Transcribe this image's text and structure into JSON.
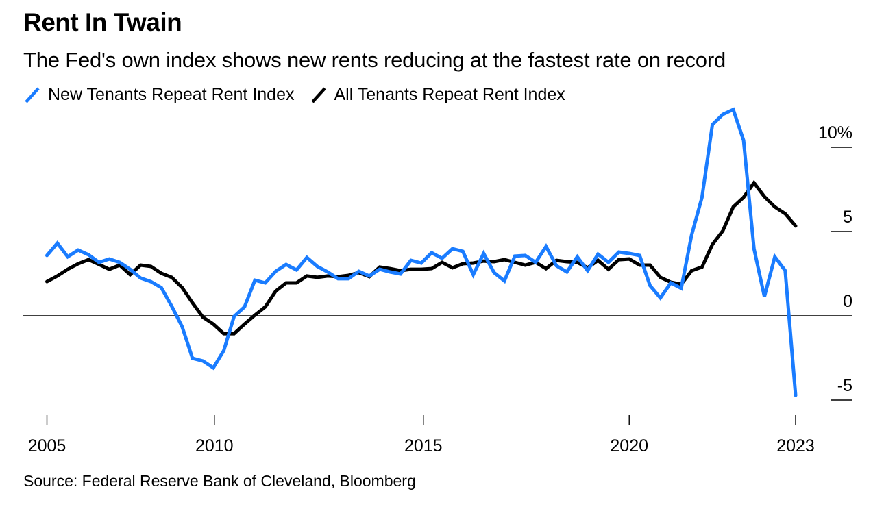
{
  "header": {
    "title": "Rent In Twain",
    "subtitle": "The Fed's own index shows new rents reducing at the fastest rate on record"
  },
  "legend": [
    {
      "label": "New Tenants Repeat Rent Index",
      "color": "#1a7cff",
      "icon": "diagonal-line-icon"
    },
    {
      "label": "All Tenants Repeat Rent Index",
      "color": "#000000",
      "icon": "diagonal-line-icon"
    }
  ],
  "source": "Source: Federal Reserve Bank of Cleveland, Bloomberg",
  "chart_data": {
    "type": "line",
    "title": "Rent In Twain",
    "subtitle": "The Fed's own index shows new rents reducing at the fastest rate on record",
    "xlabel": "",
    "ylabel": "",
    "x_unit": "quarter index (0 = 2005 Q1, 72 = 2023 Q1)",
    "xlim": [
      0,
      72
    ],
    "ylim": [
      -5.6,
      12.5
    ],
    "x_ticks": [
      {
        "label": "2005",
        "x": 0
      },
      {
        "label": "2010",
        "x": 16.1
      },
      {
        "label": "2015",
        "x": 36.2
      },
      {
        "label": "2020",
        "x": 56.0
      },
      {
        "label": "2023",
        "x": 72
      }
    ],
    "y_ticks": [
      {
        "label": "10%",
        "value": 10
      },
      {
        "label": "5",
        "value": 5
      },
      {
        "label": "0",
        "value": 0
      },
      {
        "label": "-5",
        "value": -5
      }
    ],
    "zero_line": true,
    "grid": false,
    "legend_position": "top-left",
    "y_axis_position": "right",
    "series": [
      {
        "name": "New Tenants Repeat Rent Index",
        "color": "#1a7cff",
        "values": [
          3.58,
          4.31,
          3.5,
          3.9,
          3.62,
          3.17,
          3.37,
          3.17,
          2.76,
          2.24,
          2.03,
          1.67,
          0.57,
          -0.65,
          -2.52,
          -2.68,
          -3.09,
          -2.07,
          -0.04,
          0.53,
          2.11,
          1.95,
          2.64,
          3.05,
          2.72,
          3.46,
          2.93,
          2.6,
          2.2,
          2.2,
          2.64,
          2.36,
          2.76,
          2.6,
          2.48,
          3.29,
          3.13,
          3.74,
          3.41,
          3.98,
          3.82,
          2.44,
          3.7,
          2.56,
          2.07,
          3.54,
          3.58,
          3.17,
          4.11,
          2.97,
          2.6,
          3.5,
          2.68,
          3.66,
          3.17,
          3.78,
          3.7,
          3.58,
          1.79,
          1.06,
          1.95,
          1.63,
          4.8,
          7.03,
          11.34,
          11.95,
          12.24,
          10.41,
          3.98,
          1.14,
          3.5,
          2.68,
          -4.72
        ]
      },
      {
        "name": "All Tenants Repeat Rent Index",
        "color": "#000000",
        "values": [
          2.03,
          2.36,
          2.76,
          3.09,
          3.33,
          3.05,
          2.76,
          3.01,
          2.44,
          3.01,
          2.93,
          2.52,
          2.28,
          1.67,
          0.77,
          -0.08,
          -0.49,
          -1.06,
          -1.06,
          -0.49,
          0.04,
          0.53,
          1.46,
          1.95,
          1.95,
          2.36,
          2.28,
          2.36,
          2.32,
          2.4,
          2.56,
          2.32,
          2.89,
          2.8,
          2.68,
          2.76,
          2.76,
          2.8,
          3.17,
          2.85,
          3.09,
          3.13,
          3.25,
          3.21,
          3.33,
          3.17,
          3.01,
          3.17,
          2.8,
          3.29,
          3.21,
          3.17,
          2.85,
          3.29,
          2.76,
          3.33,
          3.37,
          3.01,
          3.01,
          2.28,
          1.99,
          1.87,
          2.68,
          2.89,
          4.23,
          5.04,
          6.46,
          7.03,
          7.89,
          7.07,
          6.46,
          6.06,
          5.33
        ]
      }
    ]
  }
}
